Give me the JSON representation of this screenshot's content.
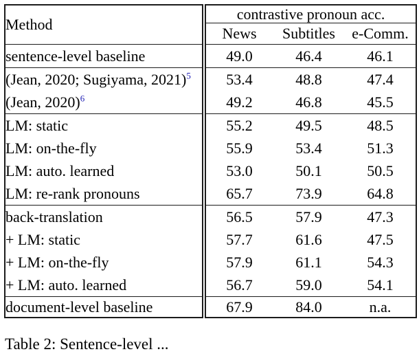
{
  "table": {
    "method_header": "Method",
    "group_header": "contrastive pronoun acc.",
    "columns": [
      "News",
      "Subtitles",
      "e-Comm."
    ],
    "sections": [
      {
        "rows": [
          {
            "method": "sentence-level baseline",
            "values": [
              "49.0",
              "46.4",
              "46.1"
            ]
          }
        ]
      },
      {
        "rows": [
          {
            "method": "(Jean, 2020; Sugiyama, 2021)",
            "sup": "5",
            "small": true,
            "values": [
              "53.4",
              "48.8",
              "47.4"
            ]
          },
          {
            "method": "(Jean, 2020)",
            "sup": "6",
            "small": true,
            "values": [
              "49.2",
              "46.8",
              "45.5"
            ]
          }
        ]
      },
      {
        "rows": [
          {
            "method": "LM: static",
            "values": [
              "55.2",
              "49.5",
              "48.5"
            ]
          },
          {
            "method": "LM: on-the-fly",
            "values": [
              "55.9",
              "53.4",
              "51.3"
            ]
          },
          {
            "method": "LM: auto. learned",
            "values": [
              "53.0",
              "50.1",
              "50.5"
            ]
          },
          {
            "method": "LM: re-rank pronouns",
            "values": [
              "65.7",
              "73.9",
              "64.8"
            ]
          }
        ]
      },
      {
        "rows": [
          {
            "method": "back-translation",
            "values": [
              "56.5",
              "57.9",
              "47.3"
            ]
          },
          {
            "method": "+ LM: static",
            "indent": true,
            "values": [
              "57.7",
              "61.6",
              "47.5"
            ]
          },
          {
            "method": "+ LM: on-the-fly",
            "indent": true,
            "values": [
              "57.9",
              "61.1",
              "54.3"
            ]
          },
          {
            "method": "+ LM: auto. learned",
            "indent": true,
            "values": [
              "56.7",
              "59.0",
              "54.1"
            ]
          }
        ]
      },
      {
        "rows": [
          {
            "method": "document-level baseline",
            "values": [
              "67.9",
              "84.0",
              "n.a."
            ],
            "bold": [
              true,
              true,
              false
            ]
          }
        ]
      }
    ]
  },
  "caption": "Table 2: Sentence-level ...",
  "colors": {
    "footnote_link": "#1b1bb3",
    "text": "#000000",
    "border": "#1b1b1b"
  }
}
